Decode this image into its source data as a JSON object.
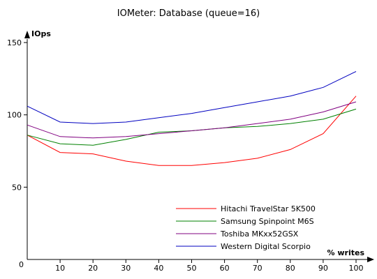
{
  "chart_data": {
    "type": "line",
    "title": "IOMeter: Database (queue=16)",
    "xlabel": "% writes",
    "ylabel": "IOps",
    "x": [
      0,
      10,
      20,
      30,
      40,
      50,
      60,
      70,
      80,
      90,
      100
    ],
    "x_ticks": [
      "10",
      "20",
      "30",
      "40",
      "50",
      "60",
      "70",
      "80",
      "90",
      "100"
    ],
    "y_ticks": [
      "50",
      "100",
      "150"
    ],
    "origin_label": "0",
    "xlim": [
      0,
      100
    ],
    "ylim": [
      0,
      150
    ],
    "grid": false,
    "legend_position": "bottom-right",
    "series": [
      {
        "name": "Hitachi TravelStar 5K500",
        "color": "#ff0000",
        "values": [
          86,
          74,
          73,
          68,
          65,
          65,
          67,
          70,
          76,
          87,
          113
        ]
      },
      {
        "name": "Samsung Spinpoint M6S",
        "color": "#008000",
        "values": [
          86,
          80,
          79,
          83,
          88,
          89,
          91,
          92,
          94,
          97,
          104
        ]
      },
      {
        "name": "Toshiba MKxx52GSX",
        "color": "#800080",
        "values": [
          93,
          85,
          84,
          85,
          87,
          89,
          91,
          94,
          97,
          102,
          109
        ]
      },
      {
        "name": "Western Digital Scorpio",
        "color": "#0000c0",
        "values": [
          106,
          95,
          94,
          95,
          98,
          101,
          105,
          109,
          113,
          119,
          130
        ]
      }
    ]
  }
}
